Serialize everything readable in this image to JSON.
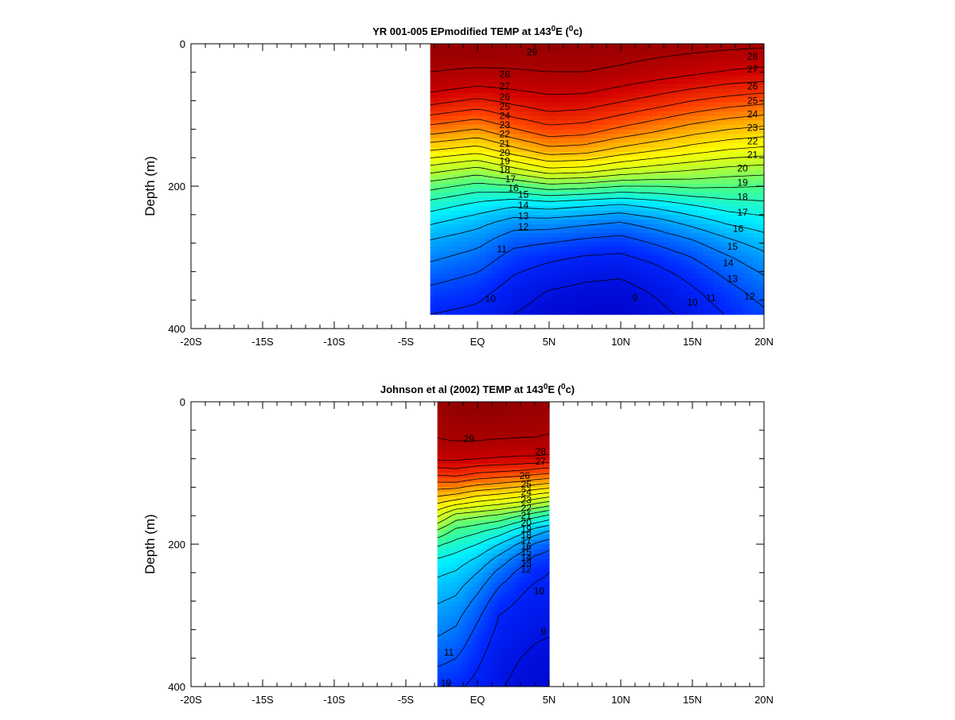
{
  "chart_data": [
    {
      "type": "heatmap",
      "title": {
        "prefix": "YR 001-005 EPmodified TEMP at 143",
        "deg": "0",
        "mid": "E (",
        "unit": "0",
        "suffix": "c)"
      },
      "ylabel": "Depth (m)",
      "xlim": [
        -20,
        20
      ],
      "ylim": [
        400,
        0
      ],
      "yaxis_inverted": true,
      "x_ticks": [
        {
          "v": -20,
          "label": "-20S"
        },
        {
          "v": -15,
          "label": "-15S"
        },
        {
          "v": -10,
          "label": "-10S"
        },
        {
          "v": -5,
          "label": "-5S"
        },
        {
          "v": 0,
          "label": "EQ"
        },
        {
          "v": 5,
          "label": "5N"
        },
        {
          "v": 10,
          "label": "10N"
        },
        {
          "v": 15,
          "label": "15N"
        },
        {
          "v": 20,
          "label": "20N"
        }
      ],
      "y_ticks": [
        {
          "v": 0,
          "label": "0"
        },
        {
          "v": 200,
          "label": "200"
        },
        {
          "v": 400,
          "label": "400"
        }
      ],
      "colorscale": {
        "vmin": 8,
        "vmax": 30,
        "stops": [
          "#0000c8",
          "#0028ff",
          "#0090ff",
          "#00f0ff",
          "#40ff90",
          "#b8ff30",
          "#ffff00",
          "#ffb000",
          "#ff4000",
          "#d00000",
          "#8c0000"
        ]
      },
      "contour_levels": [
        9,
        10,
        11,
        12,
        13,
        14,
        15,
        16,
        17,
        18,
        19,
        20,
        21,
        22,
        23,
        24,
        25,
        26,
        27,
        28,
        29
      ],
      "data_extent": {
        "x": [
          -3.3,
          20
        ],
        "depth": [
          0,
          380
        ]
      },
      "x": [
        -3.3,
        0,
        2.5,
        5,
        7.5,
        10,
        12.5,
        15,
        17.5,
        20
      ],
      "depth": [
        0,
        20,
        40,
        60,
        80,
        100,
        125,
        150,
        175,
        200,
        225,
        250,
        275,
        300,
        325,
        350,
        380
      ],
      "temperature": [
        [
          29.6,
          29.6,
          29.6,
          29.7,
          29.7,
          29.6,
          29.5,
          29.4,
          29.3,
          29.2
        ],
        [
          29.4,
          29.4,
          29.3,
          29.3,
          29.3,
          29.2,
          29.0,
          28.8,
          28.6,
          28.5
        ],
        [
          29.0,
          28.8,
          28.9,
          29.0,
          29.0,
          28.8,
          28.5,
          28.2,
          27.9,
          27.7
        ],
        [
          28.4,
          28.0,
          28.2,
          28.4,
          28.4,
          28.0,
          27.6,
          27.2,
          26.8,
          26.6
        ],
        [
          27.4,
          26.8,
          27.3,
          27.7,
          27.6,
          27.1,
          26.6,
          26.0,
          25.6,
          25.3
        ],
        [
          26.0,
          25.4,
          26.2,
          26.8,
          26.6,
          26.0,
          25.4,
          24.8,
          24.3,
          24.0
        ],
        [
          24.2,
          23.6,
          24.6,
          25.4,
          25.2,
          24.5,
          23.9,
          23.2,
          22.7,
          22.4
        ],
        [
          22.0,
          21.4,
          22.6,
          23.6,
          23.4,
          22.6,
          22.0,
          21.4,
          20.9,
          20.6
        ],
        [
          19.6,
          18.8,
          19.9,
          21.0,
          20.8,
          20.1,
          19.6,
          19.2,
          18.8,
          18.6
        ],
        [
          17.4,
          16.6,
          16.9,
          17.6,
          17.4,
          17.0,
          17.0,
          17.2,
          17.1,
          17.0
        ],
        [
          15.6,
          14.8,
          14.3,
          14.6,
          14.3,
          14.0,
          14.5,
          15.1,
          15.6,
          15.8
        ],
        [
          14.2,
          13.4,
          12.6,
          12.6,
          12.3,
          12.0,
          12.6,
          13.4,
          14.2,
          14.6
        ],
        [
          13.0,
          12.4,
          11.4,
          11.2,
          10.9,
          10.7,
          11.3,
          12.0,
          12.9,
          13.6
        ],
        [
          12.2,
          11.6,
          10.6,
          10.2,
          9.9,
          9.8,
          10.3,
          11.0,
          11.9,
          12.7
        ],
        [
          11.4,
          10.9,
          10.0,
          9.5,
          9.2,
          9.1,
          9.6,
          10.3,
          11.2,
          12.0
        ],
        [
          10.7,
          10.3,
          9.5,
          8.9,
          8.7,
          8.6,
          9.1,
          9.8,
          10.6,
          11.4
        ],
        [
          10.0,
          9.7,
          9.0,
          8.5,
          8.3,
          8.3,
          8.7,
          9.3,
          10.1,
          10.8
        ]
      ],
      "contour_labels": [
        {
          "x": 3.8,
          "depth": 12,
          "text": "29"
        },
        {
          "x": 19.2,
          "depth": 18,
          "text": "28"
        },
        {
          "x": 19.2,
          "depth": 36,
          "text": "27"
        },
        {
          "x": 19.2,
          "depth": 60,
          "text": "26"
        },
        {
          "x": 19.2,
          "depth": 80,
          "text": "25"
        },
        {
          "x": 19.2,
          "depth": 99,
          "text": "24"
        },
        {
          "x": 19.2,
          "depth": 118,
          "text": "23"
        },
        {
          "x": 19.2,
          "depth": 137,
          "text": "22"
        },
        {
          "x": 19.2,
          "depth": 156,
          "text": "21"
        },
        {
          "x": 18.5,
          "depth": 175,
          "text": "20"
        },
        {
          "x": 18.5,
          "depth": 195,
          "text": "19"
        },
        {
          "x": 18.5,
          "depth": 215,
          "text": "18"
        },
        {
          "x": 18.5,
          "depth": 237,
          "text": "17"
        },
        {
          "x": 18.2,
          "depth": 260,
          "text": "16"
        },
        {
          "x": 17.8,
          "depth": 285,
          "text": "15"
        },
        {
          "x": 17.5,
          "depth": 308,
          "text": "14"
        },
        {
          "x": 17.8,
          "depth": 330,
          "text": "13"
        },
        {
          "x": 19.0,
          "depth": 355,
          "text": "12"
        },
        {
          "x": 16.3,
          "depth": 357,
          "text": "11"
        },
        {
          "x": 15.0,
          "depth": 363,
          "text": "10"
        },
        {
          "x": 11.0,
          "depth": 357,
          "text": "9"
        },
        {
          "x": 1.9,
          "depth": 43,
          "text": "28"
        },
        {
          "x": 1.9,
          "depth": 60,
          "text": "27"
        },
        {
          "x": 1.9,
          "depth": 75,
          "text": "26"
        },
        {
          "x": 1.9,
          "depth": 88,
          "text": "25"
        },
        {
          "x": 1.9,
          "depth": 101,
          "text": "24"
        },
        {
          "x": 1.9,
          "depth": 114,
          "text": "23"
        },
        {
          "x": 1.9,
          "depth": 127,
          "text": "22"
        },
        {
          "x": 1.9,
          "depth": 140,
          "text": "21"
        },
        {
          "x": 1.9,
          "depth": 153,
          "text": "20"
        },
        {
          "x": 1.9,
          "depth": 165,
          "text": "19"
        },
        {
          "x": 1.9,
          "depth": 177,
          "text": "18"
        },
        {
          "x": 2.3,
          "depth": 190,
          "text": "17"
        },
        {
          "x": 2.5,
          "depth": 203,
          "text": "16"
        },
        {
          "x": 3.2,
          "depth": 212,
          "text": "15"
        },
        {
          "x": 3.2,
          "depth": 227,
          "text": "14"
        },
        {
          "x": 3.2,
          "depth": 242,
          "text": "13"
        },
        {
          "x": 3.2,
          "depth": 257,
          "text": "12"
        },
        {
          "x": 1.7,
          "depth": 288,
          "text": "11"
        },
        {
          "x": 0.9,
          "depth": 358,
          "text": "10"
        }
      ]
    },
    {
      "type": "heatmap",
      "title": {
        "prefix": "Johnson et al (2002) TEMP at 143",
        "deg": "0",
        "mid": "E (",
        "unit": "0",
        "suffix": "c)"
      },
      "ylabel": "Depth (m)",
      "xlim": [
        -20,
        20
      ],
      "ylim": [
        400,
        0
      ],
      "yaxis_inverted": true,
      "x_ticks": [
        {
          "v": -20,
          "label": "-20S"
        },
        {
          "v": -15,
          "label": "-15S"
        },
        {
          "v": -10,
          "label": "-10S"
        },
        {
          "v": -5,
          "label": "-5S"
        },
        {
          "v": 0,
          "label": "EQ"
        },
        {
          "v": 5,
          "label": "5N"
        },
        {
          "v": 10,
          "label": "10N"
        },
        {
          "v": 15,
          "label": "15N"
        },
        {
          "v": 20,
          "label": "20N"
        }
      ],
      "y_ticks": [
        {
          "v": 0,
          "label": "0"
        },
        {
          "v": 200,
          "label": "200"
        },
        {
          "v": 400,
          "label": "400"
        }
      ],
      "colorscale": {
        "vmin": 8,
        "vmax": 30,
        "stops": [
          "#0000c8",
          "#0028ff",
          "#0090ff",
          "#00f0ff",
          "#40ff90",
          "#b8ff30",
          "#ffff00",
          "#ffb000",
          "#ff4000",
          "#d00000",
          "#8c0000"
        ]
      },
      "contour_levels": [
        9,
        10,
        11,
        12,
        13,
        14,
        15,
        16,
        17,
        18,
        19,
        20,
        21,
        22,
        23,
        24,
        25,
        26,
        27,
        28,
        29
      ],
      "data_extent": {
        "x": [
          -2.8,
          5
        ],
        "depth": [
          0,
          400
        ]
      },
      "x": [
        -2.8,
        -1.5,
        0,
        1.5,
        3,
        4,
        5
      ],
      "depth": [
        0,
        20,
        40,
        60,
        80,
        100,
        120,
        140,
        160,
        180,
        200,
        220,
        240,
        260,
        280,
        300,
        330,
        360,
        400
      ],
      "temperature": [
        [
          29.4,
          29.8,
          29.8,
          29.8,
          29.7,
          29.7,
          29.6
        ],
        [
          29.3,
          29.6,
          29.6,
          29.6,
          29.5,
          29.5,
          29.4
        ],
        [
          29.1,
          29.3,
          29.3,
          29.3,
          29.2,
          29.2,
          29.1
        ],
        [
          28.9,
          28.9,
          28.9,
          28.8,
          28.8,
          28.8,
          28.7
        ],
        [
          28.2,
          28.2,
          28.0,
          27.9,
          27.8,
          27.8,
          27.7
        ],
        [
          26.3,
          26.5,
          26.0,
          25.8,
          25.6,
          25.3,
          25.1
        ],
        [
          24.3,
          24.2,
          23.6,
          23.3,
          22.9,
          22.5,
          22.2
        ],
        [
          22.3,
          21.7,
          21.0,
          20.6,
          20.1,
          19.5,
          19.0
        ],
        [
          20.2,
          18.6,
          18.2,
          17.8,
          17.0,
          16.4,
          15.8
        ],
        [
          18.0,
          16.8,
          16.3,
          15.7,
          14.6,
          13.7,
          13.1
        ],
        [
          16.2,
          15.6,
          15.0,
          14.0,
          12.8,
          11.9,
          11.4
        ],
        [
          15.0,
          14.6,
          13.9,
          12.7,
          11.5,
          10.8,
          10.5
        ],
        [
          14.2,
          13.9,
          13.0,
          11.7,
          10.7,
          10.2,
          10.0
        ],
        [
          13.6,
          13.3,
          12.3,
          11.0,
          10.2,
          9.9,
          9.8
        ],
        [
          13.1,
          12.8,
          11.7,
          10.4,
          9.9,
          9.6,
          9.5
        ],
        [
          12.6,
          12.3,
          11.2,
          10.0,
          9.6,
          9.4,
          9.3
        ],
        [
          12.0,
          11.7,
          10.6,
          9.7,
          9.3,
          9.1,
          9.0
        ],
        [
          11.3,
          11.0,
          10.2,
          9.4,
          9.0,
          8.8,
          8.7
        ],
        [
          10.3,
          10.2,
          9.7,
          9.1,
          8.7,
          8.6,
          8.5
        ]
      ],
      "contour_labels": [
        {
          "x": -0.6,
          "depth": 52,
          "text": "29"
        },
        {
          "x": 4.4,
          "depth": 70,
          "text": "28"
        },
        {
          "x": 4.4,
          "depth": 84,
          "text": "27"
        },
        {
          "x": 3.3,
          "depth": 104,
          "text": "26"
        },
        {
          "x": 3.4,
          "depth": 116,
          "text": "25"
        },
        {
          "x": 3.4,
          "depth": 127,
          "text": "24"
        },
        {
          "x": 3.4,
          "depth": 138,
          "text": "23"
        },
        {
          "x": 3.4,
          "depth": 149,
          "text": "22"
        },
        {
          "x": 3.4,
          "depth": 160,
          "text": "21"
        },
        {
          "x": 3.4,
          "depth": 170,
          "text": "20"
        },
        {
          "x": 3.4,
          "depth": 179,
          "text": "19"
        },
        {
          "x": 3.4,
          "depth": 187,
          "text": "18"
        },
        {
          "x": 3.4,
          "depth": 195,
          "text": "17"
        },
        {
          "x": 3.4,
          "depth": 203,
          "text": "16"
        },
        {
          "x": 3.4,
          "depth": 211,
          "text": "15"
        },
        {
          "x": 3.4,
          "depth": 219,
          "text": "14"
        },
        {
          "x": 3.4,
          "depth": 227,
          "text": "13"
        },
        {
          "x": 3.4,
          "depth": 235,
          "text": "12"
        },
        {
          "x": 4.3,
          "depth": 266,
          "text": "10"
        },
        {
          "x": 4.6,
          "depth": 323,
          "text": "9"
        },
        {
          "x": -2.0,
          "depth": 352,
          "text": "11"
        },
        {
          "x": -2.2,
          "depth": 395,
          "text": "10"
        }
      ]
    }
  ]
}
